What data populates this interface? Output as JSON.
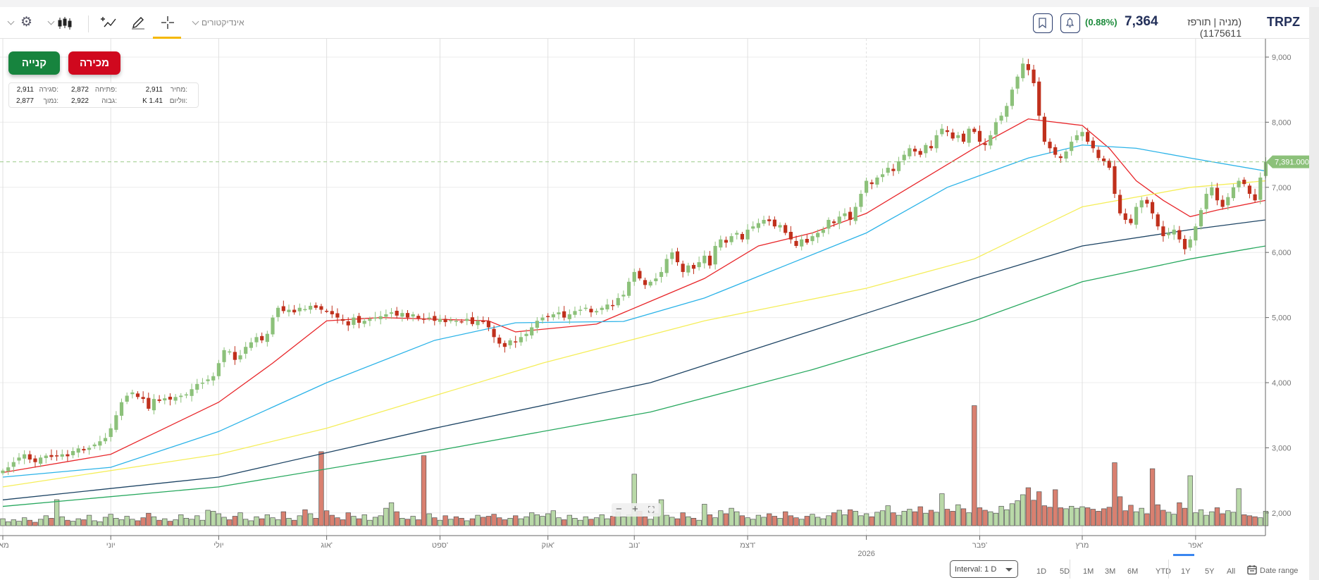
{
  "header": {
    "symbol": "TRPZ",
    "description": "(מניה | תורפז 1175611)",
    "price": "7,364",
    "change": "(0.88%)",
    "indicators_label": "אינדיקטורים"
  },
  "colors": {
    "up": "#8cc17a",
    "down": "#c0301c",
    "vol_up": "#b9d9a8",
    "vol_down": "#d98070",
    "accent": "#f5b800",
    "ma": [
      "#e8262a",
      "#2bb3e8",
      "#f5ee5a",
      "#1d4464",
      "#27a85e"
    ],
    "price_tag": "#8cc17a",
    "change": "#1b8a3a"
  },
  "trade": {
    "buy": "קנייה",
    "sell": "מכירה"
  },
  "info": {
    "price_label": "מחיר:",
    "price": "2,911",
    "open_label": "פתיחה:",
    "open": "2,872",
    "close_label": "סגירה:",
    "close": "2,911",
    "volume_label": "ווליום:",
    "volume": "K 1.41",
    "high_label": "גבוה:",
    "high": "2,922",
    "low_label": "נמוך:",
    "low": "2,877"
  },
  "zoom_controls": {
    "minus": "−",
    "plus": "+"
  },
  "footer": {
    "interval": "Interval: 1 D",
    "ranges": [
      "1D",
      "5D",
      "1M",
      "3M",
      "6M",
      "YTD",
      "1Y",
      "5Y",
      "All"
    ],
    "active_range": "1Y",
    "date_range": "Date range"
  },
  "chart_data": {
    "type": "candlestick",
    "ylim": [
      1800,
      9200
    ],
    "y_ticks": [
      "2,000",
      "3,000",
      "4,000",
      "5,000",
      "6,000",
      "7,000",
      "8,000",
      "9,000"
    ],
    "y_tick_values": [
      2000,
      3000,
      4000,
      5000,
      6000,
      7000,
      8000,
      9000
    ],
    "last_price_label": "7,391.000",
    "last_price": 7391,
    "x_labels": [
      {
        "i": 0,
        "label": "מאי"
      },
      {
        "i": 20,
        "label": "יוני"
      },
      {
        "i": 40,
        "label": "יולי"
      },
      {
        "i": 60,
        "label": "אוג'"
      },
      {
        "i": 81,
        "label": "ספט'"
      },
      {
        "i": 101,
        "label": "אוק'"
      },
      {
        "i": 117,
        "label": "נוב'"
      },
      {
        "i": 138,
        "label": "דצמ'"
      },
      {
        "i": 160,
        "label": "2026"
      },
      {
        "i": 181,
        "label": "פבר'"
      },
      {
        "i": 200,
        "label": "מרץ"
      },
      {
        "i": 221,
        "label": "אפר'"
      }
    ],
    "closes": [
      2650,
      2700,
      2780,
      2850,
      2900,
      2820,
      2780,
      2850,
      2880,
      2860,
      2880,
      2900,
      2870,
      2950,
      2990,
      2960,
      3000,
      3050,
      3100,
      3150,
      3300,
      3500,
      3700,
      3800,
      3850,
      3780,
      3750,
      3600,
      3750,
      3720,
      3760,
      3740,
      3780,
      3800,
      3820,
      3900,
      3980,
      4000,
      4050,
      4100,
      4300,
      4500,
      4480,
      4350,
      4420,
      4550,
      4620,
      4700,
      4650,
      4750,
      5000,
      5150,
      5100,
      5120,
      5080,
      5150,
      5130,
      5180,
      5150,
      5120,
      5100,
      5050,
      5000,
      4950,
      4880,
      5000,
      4920,
      4950,
      4980,
      5000,
      5020,
      5050,
      5080,
      5030,
      5070,
      5000,
      5050,
      4990,
      4980,
      5000,
      4950,
      4980,
      4930,
      4960,
      4950,
      4940,
      4980,
      4900,
      4950,
      4930,
      4850,
      4700,
      4600,
      4550,
      4650,
      4620,
      4700,
      4750,
      4850,
      4950,
      5000,
      5020,
      5050,
      5080,
      5000,
      5050,
      5100,
      5120,
      5150,
      5080,
      5100,
      5150,
      5200,
      5180,
      5300,
      5350,
      5550,
      5700,
      5600,
      5500,
      5550,
      5600,
      5700,
      5900,
      6000,
      5850,
      5700,
      5800,
      5750,
      5850,
      5950,
      5800,
      6100,
      6200,
      6150,
      6250,
      6300,
      6200,
      6350,
      6400,
      6450,
      6500,
      6480,
      6400,
      6420,
      6300,
      6200,
      6100,
      6200,
      6150,
      6250,
      6300,
      6350,
      6500,
      6450,
      6550,
      6600,
      6500,
      6700,
      6900,
      7100,
      7050,
      7150,
      7200,
      7300,
      7250,
      7400,
      7500,
      7600,
      7550,
      7500,
      7650,
      7600,
      7800,
      7900,
      7850,
      7750,
      7800,
      7700,
      7900,
      7850,
      7700,
      7650,
      7800,
      8000,
      8100,
      8250,
      8500,
      8700,
      8900,
      8800,
      8600,
      8100,
      7700,
      7600,
      7500,
      7450,
      7550,
      7700,
      7800,
      7850,
      7700,
      7600,
      7450,
      7400,
      7300,
      6900,
      6600,
      6500,
      6450,
      6700,
      6800,
      6750,
      6600,
      6400,
      6250,
      6300,
      6350,
      6200,
      6050,
      6200,
      6400,
      6650,
      6900,
      7000,
      6800,
      6700,
      6850,
      7000,
      7100,
      7050,
      6900,
      6800,
      7150,
      7391
    ],
    "volumes_k": [
      1.4,
      0.8,
      1.2,
      0.9,
      1.6,
      1.1,
      0.7,
      1.3,
      2.0,
      1.5,
      5.2,
      1.8,
      1.1,
      0.9,
      1.4,
      1.2,
      2.1,
      1.0,
      0.8,
      1.7,
      2.3,
      1.5,
      1.2,
      1.9,
      1.3,
      1.0,
      1.6,
      2.5,
      1.8,
      1.1,
      1.4,
      0.9,
      1.2,
      2.2,
      1.5,
      1.3,
      2.0,
      1.1,
      3.1,
      2.9,
      2.4,
      1.7,
      1.2,
      1.9,
      2.6,
      1.3,
      1.0,
      1.8,
      1.4,
      2.2,
      1.6,
      1.2,
      2.8,
      1.5,
      1.1,
      2.0,
      3.2,
      2.4,
      1.5,
      14.8,
      3.0,
      2.1,
      1.6,
      1.2,
      2.6,
      1.9,
      1.4,
      2.2,
      1.1,
      1.7,
      2.0,
      3.5,
      4.6,
      2.8,
      1.5,
      1.3,
      1.9,
      1.2,
      14.0,
      2.4,
      1.6,
      1.1,
      2.0,
      1.3,
      1.8,
      1.5,
      1.0,
      1.4,
      2.1,
      1.7,
      1.9,
      2.3,
      1.6,
      1.2,
      1.5,
      2.0,
      1.4,
      1.8,
      2.6,
      2.2,
      1.9,
      2.4,
      3.0,
      1.6,
      1.2,
      2.1,
      1.5,
      1.1,
      1.8,
      1.3,
      1.6,
      2.2,
      1.4,
      1.9,
      2.7,
      1.8,
      2.2,
      10.3,
      2.9,
      1.8,
      1.3,
      2.4,
      5.2,
      2.1,
      1.7,
      1.4,
      2.6,
      1.8,
      1.5,
      1.1,
      4.3,
      2.2,
      1.6,
      3.0,
      2.4,
      3.5,
      2.8,
      2.0,
      1.6,
      1.3,
      2.1,
      1.7,
      2.4,
      1.9,
      1.5,
      2.8,
      2.0,
      1.6,
      1.3,
      1.9,
      2.3,
      1.7,
      1.4,
      2.0,
      2.6,
      3.1,
      2.2,
      3.2,
      2.9,
      2.0,
      2.4,
      1.8,
      2.7,
      3.0,
      4.0,
      2.6,
      2.1,
      2.9,
      3.3,
      2.8,
      3.8,
      2.5,
      3.1,
      2.7,
      6.4,
      3.3,
      2.9,
      4.2,
      3.4,
      2.6,
      24.0,
      3.6,
      3.1,
      2.8,
      2.5,
      3.9,
      3.2,
      4.4,
      5.0,
      6.2,
      7.6,
      5.1,
      6.8,
      4.0,
      3.7,
      7.2,
      3.6,
      3.4,
      3.9,
      3.5,
      3.8,
      3.6,
      3.3,
      2.9,
      3.4,
      3.7,
      12.6,
      5.8,
      3.0,
      4.1,
      2.8,
      3.5,
      2.4,
      11.4,
      4.2,
      3.1,
      2.7,
      2.3,
      4.6,
      3.5,
      10.0,
      2.6,
      3.2,
      2.1,
      2.8,
      3.6,
      2.4,
      3.0,
      2.7,
      7.4,
      2.2,
      2.0,
      1.8,
      1.6,
      2.9
    ],
    "moving_averages": [
      {
        "name": "MA red",
        "points": [
          [
            0,
            2620
          ],
          [
            20,
            2900
          ],
          [
            40,
            3700
          ],
          [
            50,
            4300
          ],
          [
            60,
            4950
          ],
          [
            70,
            5000
          ],
          [
            90,
            4950
          ],
          [
            95,
            4780
          ],
          [
            110,
            4900
          ],
          [
            120,
            5250
          ],
          [
            130,
            5600
          ],
          [
            140,
            6100
          ],
          [
            150,
            6300
          ],
          [
            160,
            6600
          ],
          [
            170,
            7100
          ],
          [
            180,
            7600
          ],
          [
            190,
            8050
          ],
          [
            200,
            7950
          ],
          [
            205,
            7600
          ],
          [
            210,
            7100
          ],
          [
            215,
            6800
          ],
          [
            220,
            6550
          ],
          [
            225,
            6650
          ],
          [
            234,
            6800
          ]
        ]
      },
      {
        "name": "MA blue",
        "points": [
          [
            0,
            2550
          ],
          [
            20,
            2700
          ],
          [
            40,
            3250
          ],
          [
            60,
            4000
          ],
          [
            80,
            4650
          ],
          [
            95,
            4920
          ],
          [
            115,
            4940
          ],
          [
            130,
            5300
          ],
          [
            145,
            5800
          ],
          [
            160,
            6300
          ],
          [
            175,
            7000
          ],
          [
            190,
            7450
          ],
          [
            200,
            7650
          ],
          [
            210,
            7600
          ],
          [
            220,
            7450
          ],
          [
            234,
            7250
          ]
        ]
      },
      {
        "name": "MA yellow",
        "points": [
          [
            0,
            2400
          ],
          [
            40,
            2900
          ],
          [
            60,
            3300
          ],
          [
            100,
            4300
          ],
          [
            130,
            4950
          ],
          [
            160,
            5450
          ],
          [
            180,
            5900
          ],
          [
            200,
            6700
          ],
          [
            220,
            7000
          ],
          [
            234,
            7100
          ]
        ]
      },
      {
        "name": "MA navy",
        "points": [
          [
            0,
            2200
          ],
          [
            40,
            2550
          ],
          [
            80,
            3300
          ],
          [
            120,
            4000
          ],
          [
            150,
            4800
          ],
          [
            180,
            5600
          ],
          [
            200,
            6100
          ],
          [
            220,
            6350
          ],
          [
            234,
            6500
          ]
        ]
      },
      {
        "name": "MA green",
        "points": [
          [
            0,
            2100
          ],
          [
            40,
            2400
          ],
          [
            80,
            2950
          ],
          [
            120,
            3550
          ],
          [
            150,
            4200
          ],
          [
            180,
            4950
          ],
          [
            200,
            5550
          ],
          [
            220,
            5900
          ],
          [
            234,
            6100
          ]
        ]
      }
    ]
  }
}
